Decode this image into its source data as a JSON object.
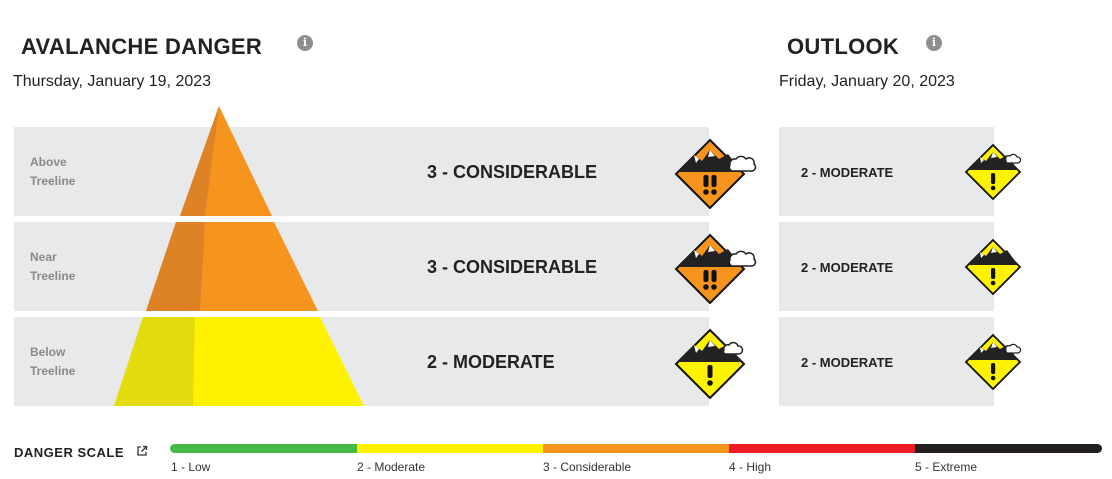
{
  "current": {
    "title": "AVALANCHE DANGER",
    "date": "Thursday, January 19, 2023",
    "bands": [
      {
        "label_line1": "Above",
        "label_line2": "Treeline",
        "rating": "3 - CONSIDERABLE",
        "level": 3
      },
      {
        "label_line1": "Near",
        "label_line2": "Treeline",
        "rating": "3 - CONSIDERABLE",
        "level": 3
      },
      {
        "label_line1": "Below",
        "label_line2": "Treeline",
        "rating": "2 - MODERATE",
        "level": 2
      }
    ]
  },
  "outlook": {
    "title": "OUTLOOK",
    "date": "Friday, January 20, 2023",
    "bands": [
      {
        "rating": "2 - MODERATE",
        "level": 2
      },
      {
        "rating": "2 - MODERATE",
        "level": 2
      },
      {
        "rating": "2 - MODERATE",
        "level": 2
      }
    ]
  },
  "danger_scale": {
    "title": "DANGER SCALE",
    "levels": [
      {
        "label": "1 - Low",
        "color": "#45b945"
      },
      {
        "label": "2 - Moderate",
        "color": "#fff200"
      },
      {
        "label": "3 - Considerable",
        "color": "#f7941e"
      },
      {
        "label": "4 - High",
        "color": "#ed1c24"
      },
      {
        "label": "5 - Extreme",
        "color": "#231f20"
      }
    ]
  },
  "colors": {
    "considerable": "#f7941e",
    "considerable_shade": "#de8226",
    "moderate": "#fff200",
    "moderate_shade": "#e3db0c",
    "band_bg": "#e7e9eb"
  },
  "icons": {
    "info": "info-icon",
    "external_link": "external-link-icon",
    "danger_considerable": "danger-considerable-icon",
    "danger_moderate": "danger-moderate-icon"
  }
}
